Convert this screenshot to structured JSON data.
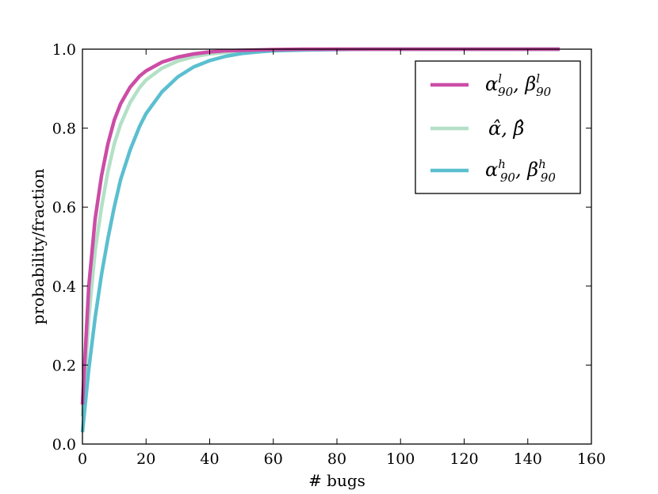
{
  "chart_data": {
    "type": "line",
    "title": "",
    "xlabel": "# bugs",
    "ylabel": "probability/fraction",
    "xlim": [
      0,
      160
    ],
    "ylim": [
      0.0,
      1.0
    ],
    "xticks": [
      0,
      20,
      40,
      60,
      80,
      100,
      120,
      140,
      160
    ],
    "yticks": [
      0.0,
      0.2,
      0.4,
      0.6,
      0.8,
      1.0
    ],
    "xtick_labels": [
      "0",
      "20",
      "40",
      "60",
      "80",
      "100",
      "120",
      "140",
      "160"
    ],
    "ytick_labels": [
      "0.0",
      "0.2",
      "0.4",
      "0.6",
      "0.8",
      "1.0"
    ],
    "grid": false,
    "legend_position": "top-right",
    "x": [
      0,
      2,
      4,
      6,
      8,
      10,
      12,
      15,
      18,
      20,
      25,
      30,
      35,
      40,
      45,
      50,
      55,
      60,
      70,
      80,
      90,
      100,
      110,
      120,
      130,
      140,
      150
    ],
    "series": [
      {
        "name": "α90l, β90l",
        "color": "#cc4ca6",
        "values": [
          0.1,
          0.4,
          0.57,
          0.68,
          0.76,
          0.82,
          0.862,
          0.904,
          0.932,
          0.945,
          0.967,
          0.98,
          0.988,
          0.993,
          0.996,
          0.997,
          0.998,
          0.999,
          1.0,
          1.0,
          1.0,
          1.0,
          1.0,
          1.0,
          1.0,
          1.0,
          1.0
        ]
      },
      {
        "name": "α̂, β̂",
        "color": "#b3e0c6",
        "values": [
          0.07,
          0.32,
          0.49,
          0.6,
          0.69,
          0.76,
          0.81,
          0.865,
          0.903,
          0.922,
          0.952,
          0.97,
          0.981,
          0.988,
          0.992,
          0.995,
          0.997,
          0.998,
          0.999,
          1.0,
          1.0,
          1.0,
          1.0,
          1.0,
          1.0,
          1.0,
          1.0
        ]
      },
      {
        "name": "α90h, β90h",
        "color": "#5bbfcf",
        "values": [
          0.03,
          0.19,
          0.32,
          0.43,
          0.52,
          0.6,
          0.67,
          0.745,
          0.805,
          0.837,
          0.892,
          0.93,
          0.955,
          0.971,
          0.982,
          0.989,
          0.993,
          0.996,
          0.998,
          0.999,
          1.0,
          1.0,
          1.0,
          1.0,
          1.0,
          1.0,
          1.0
        ]
      }
    ]
  },
  "legend": [
    {
      "base1": "α",
      "sub1": "90",
      "sup1": "l",
      "base2": "β",
      "sub2": "90",
      "sup2": "l"
    },
    {
      "base1": "α̂",
      "base2": "β̂"
    },
    {
      "base1": "α",
      "sub1": "90",
      "sup1": "h",
      "base2": "β",
      "sub2": "90",
      "sup2": "h"
    }
  ]
}
